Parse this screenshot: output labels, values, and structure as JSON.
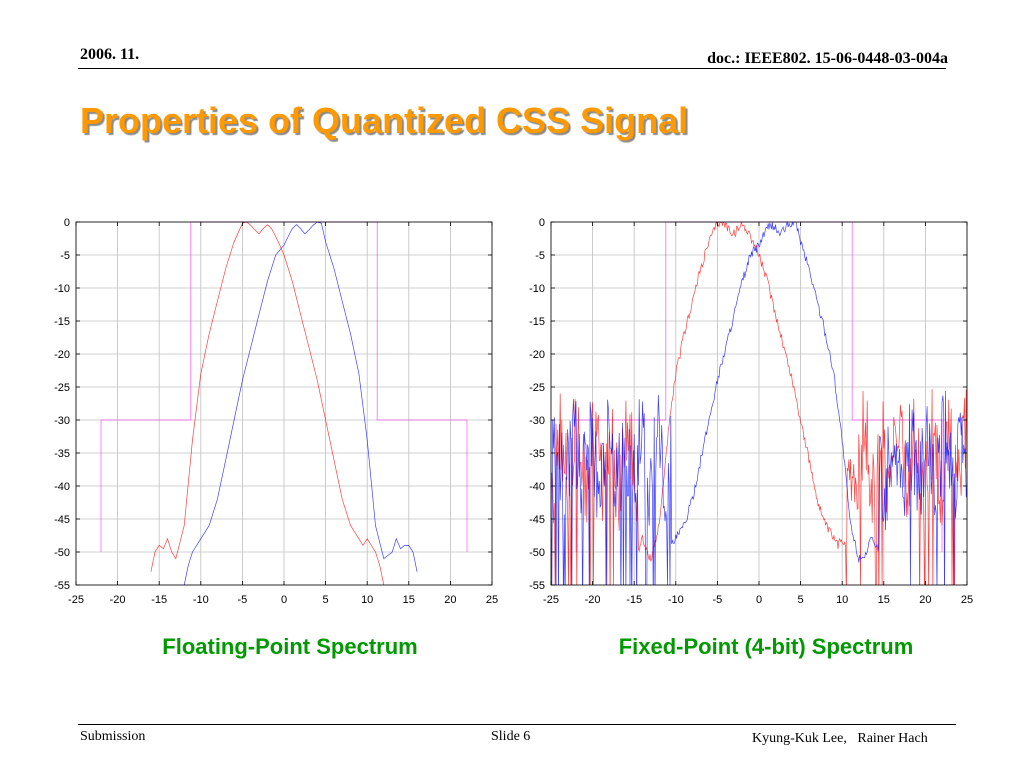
{
  "header": {
    "date": "2006. 11.",
    "doc": "doc.: IEEE802. 15-06-0448-03-004a"
  },
  "title": "Properties of Quantized CSS Signal",
  "colors": {
    "title": "#ff9900",
    "caption": "#009a00",
    "series_red": "#ff0000",
    "series_blue": "#0000ff",
    "mask": "#ff00ff",
    "grid": "#c0c0c0"
  },
  "chart_data": [
    {
      "type": "line",
      "caption": "Floating-Point Spectrum",
      "xlim": [
        -25,
        25
      ],
      "ylim": [
        -55,
        0
      ],
      "xticks": [
        "-25",
        "-20",
        "-15",
        "-10",
        "-5",
        "0",
        "5",
        "10",
        "15",
        "20",
        "25"
      ],
      "yticks": [
        "0",
        "-5",
        "-10",
        "-15",
        "-20",
        "-25",
        "-30",
        "-35",
        "-40",
        "-45",
        "-50",
        "-55"
      ],
      "grid": true,
      "noisy": false,
      "series": [
        {
          "color": "#ff0000",
          "x": [
            -16,
            -15.5,
            -15,
            -14.5,
            -14,
            -13.5,
            -13,
            -12,
            -11,
            -10,
            -9,
            -8,
            -7,
            -6,
            -5,
            -4.5,
            -4,
            -3.5,
            -3,
            -2.5,
            -2,
            -1.5,
            -1,
            -0.5,
            0,
            1,
            2,
            3,
            4,
            5,
            6,
            7,
            8,
            9,
            9.5,
            10,
            11,
            11.5,
            12
          ],
          "y": [
            -53,
            -50,
            -49,
            -49.5,
            -48,
            -50,
            -51,
            -46,
            -33,
            -23,
            -17,
            -12,
            -7,
            -3,
            -0.2,
            0,
            -0.5,
            -1.2,
            -1.8,
            -1,
            -0.4,
            -1,
            -2.2,
            -3.5,
            -5,
            -9,
            -14,
            -19,
            -24,
            -30,
            -36,
            -42,
            -46,
            -48,
            -49,
            -48,
            -50,
            -52,
            -55
          ]
        },
        {
          "color": "#0000ff",
          "x": [
            -12,
            -11.5,
            -11,
            -10,
            -9,
            -8,
            -7,
            -6,
            -5,
            -4,
            -3,
            -2,
            -1,
            0,
            0.5,
            1,
            1.5,
            2,
            2.5,
            3,
            3.5,
            4,
            4.5,
            5,
            6,
            7,
            8,
            9,
            10,
            11,
            12,
            13,
            13.5,
            14,
            14.5,
            15,
            15.5,
            16
          ],
          "y": [
            -55,
            -52,
            -50,
            -48,
            -46,
            -42,
            -36,
            -30,
            -24,
            -19,
            -14,
            -9,
            -5,
            -3.5,
            -2.2,
            -1,
            -0.4,
            -1,
            -1.8,
            -1.2,
            -0.5,
            0,
            -0.2,
            -3,
            -7,
            -12,
            -17,
            -23,
            -33,
            -46,
            -51,
            -50,
            -48,
            -49.5,
            -49,
            -49,
            -50,
            -53
          ]
        }
      ],
      "mask": {
        "x": [
          -22,
          -22,
          -11.2,
          -11.2,
          -7,
          -7,
          7,
          7,
          11.2,
          11.2,
          22,
          22
        ],
        "y": [
          -50,
          -30,
          -30,
          0,
          0,
          0,
          0,
          0,
          0,
          -30,
          -30,
          -50
        ]
      }
    },
    {
      "type": "line",
      "caption": "Fixed-Point (4-bit) Spectrum",
      "xlim": [
        -25,
        25
      ],
      "ylim": [
        -55,
        0
      ],
      "xticks": [
        "-25",
        "-20",
        "-15",
        "-10",
        "-5",
        "0",
        "5",
        "10",
        "15",
        "20",
        "25"
      ],
      "yticks": [
        "0",
        "-5",
        "-10",
        "-15",
        "-20",
        "-25",
        "-30",
        "-35",
        "-40",
        "-45",
        "-50",
        "-55"
      ],
      "grid": true,
      "noisy": true,
      "series": [
        {
          "color": "#ff0000",
          "x": [
            -16,
            -15.5,
            -15,
            -14.5,
            -14,
            -13.5,
            -13,
            -12,
            -11,
            -10,
            -9,
            -8,
            -7,
            -6,
            -5,
            -4.5,
            -4,
            -3.5,
            -3,
            -2.5,
            -2,
            -1.5,
            -1,
            -0.5,
            0,
            1,
            2,
            3,
            4,
            5,
            6,
            7,
            8,
            9,
            9.5,
            10,
            11,
            11.5,
            12
          ],
          "y": [
            -53,
            -50,
            -49,
            -49.5,
            -48,
            -50,
            -51,
            -46,
            -33,
            -23,
            -17,
            -12,
            -7,
            -3,
            -0.2,
            0,
            -0.5,
            -1.2,
            -1.8,
            -1,
            -0.4,
            -1,
            -2.2,
            -3.5,
            -5,
            -9,
            -14,
            -19,
            -24,
            -30,
            -36,
            -42,
            -46,
            -48,
            -49,
            -48,
            -50,
            -52,
            -55
          ]
        },
        {
          "color": "#0000ff",
          "x": [
            -12,
            -11.5,
            -11,
            -10,
            -9,
            -8,
            -7,
            -6,
            -5,
            -4,
            -3,
            -2,
            -1,
            0,
            0.5,
            1,
            1.5,
            2,
            2.5,
            3,
            3.5,
            4,
            4.5,
            5,
            6,
            7,
            8,
            9,
            10,
            11,
            12,
            13,
            13.5,
            14,
            14.5,
            15,
            15.5,
            16
          ],
          "y": [
            -55,
            -52,
            -50,
            -48,
            -46,
            -42,
            -36,
            -30,
            -24,
            -19,
            -14,
            -9,
            -5,
            -3.5,
            -2.2,
            -1,
            -0.4,
            -1,
            -1.8,
            -1.2,
            -0.5,
            0,
            -0.2,
            -3,
            -7,
            -12,
            -17,
            -23,
            -33,
            -46,
            -51,
            -50,
            -48,
            -49.5,
            -49,
            -49,
            -50,
            -53
          ]
        }
      ],
      "mask": {
        "x": [
          -22,
          -22,
          -11.2,
          -11.2,
          -7,
          -7,
          7,
          7,
          11.2,
          11.2,
          22,
          22
        ],
        "y": [
          -50,
          -30,
          -30,
          0,
          0,
          0,
          0,
          0,
          0,
          -30,
          -30,
          -50
        ]
      }
    }
  ],
  "footer": {
    "left": "Submission",
    "center": "Slide 6",
    "right": "Kyung-Kuk Lee,   Rainer Hach"
  }
}
